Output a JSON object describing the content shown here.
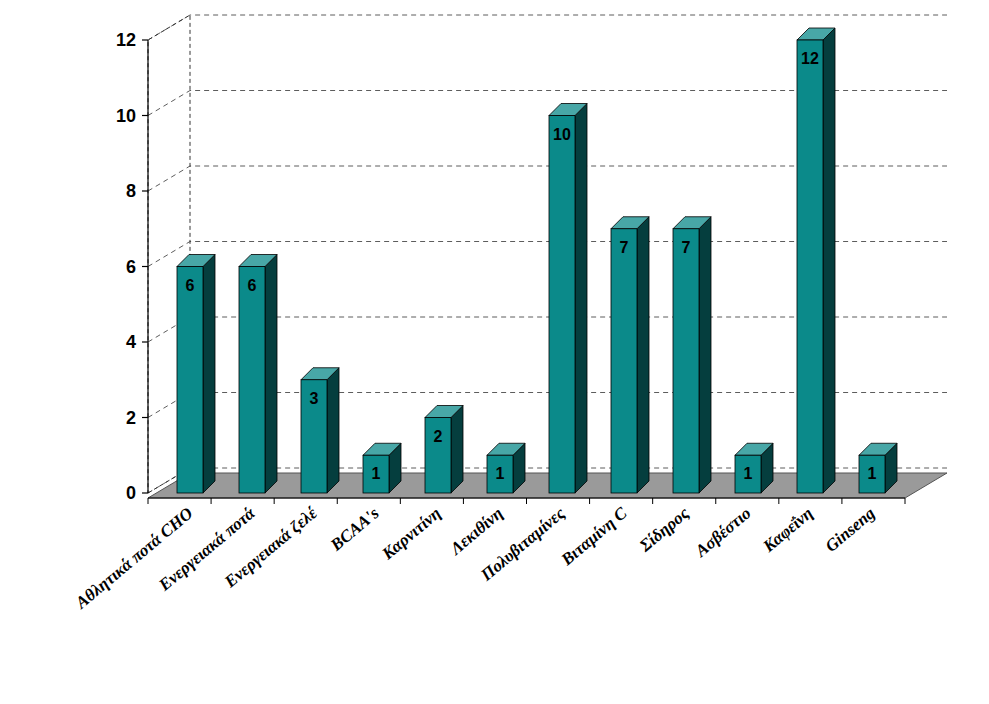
{
  "chart_data": {
    "type": "bar",
    "categories": [
      "Αθλητικά ποτά CHO",
      "Ενεργειακά ποτά",
      "Ενεργειακά ζελέ",
      "BCAA's",
      "Καρνιτίνη",
      "Λεκιθίνη",
      "Πολυβιταμίνες",
      "Βιταμίνη C",
      "Σίδηρος",
      "Ασβέστιο",
      "Καφεΐνη",
      "Ginseng"
    ],
    "values": [
      6,
      6,
      3,
      1,
      2,
      1,
      10,
      7,
      7,
      1,
      12,
      1
    ],
    "color": "#0b8a8a",
    "ylim": [
      0,
      12
    ],
    "yticks": [
      0,
      2,
      4,
      6,
      8,
      10,
      12
    ],
    "grid": true,
    "data_labels": true
  }
}
